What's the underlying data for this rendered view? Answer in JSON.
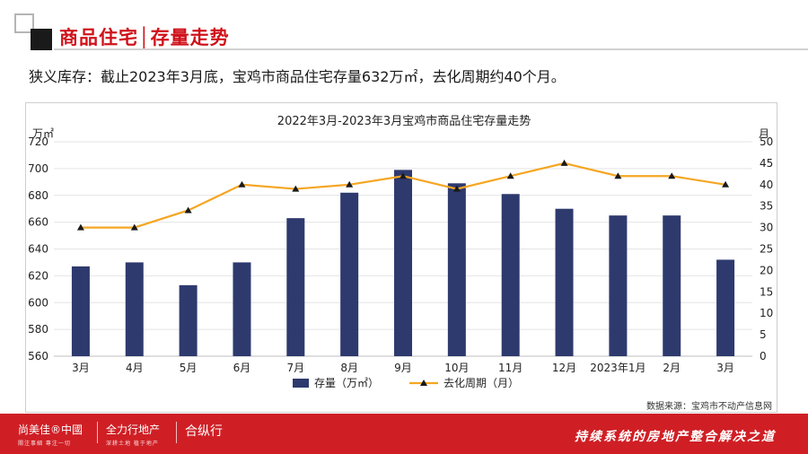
{
  "header": {
    "title": "商品住宅│存量走势"
  },
  "summary": "狭义库存：截止2023年3月底，宝鸡市商品住宅存量632万㎡，去化周期约40个月。",
  "source": "数据来源：宝鸡市不动产信息网",
  "footer": {
    "brands": [
      {
        "name": "尚美佳®中國",
        "sub": "關注事細  專注一切"
      },
      {
        "name": "全力行地产",
        "sub": "深耕土地  植于地产"
      },
      {
        "name": "合纵行",
        "sub": ""
      }
    ],
    "slogan": "持续系统的房地产整合解决之道"
  },
  "colors": {
    "brand_red": "#cf1f25",
    "bar": "#2e3a6e",
    "line": "#f5a623",
    "marker": "#1a1a1a"
  },
  "chart_data": {
    "type": "bar",
    "title": "2022年3月-2023年3月宝鸡市商品住宅存量走势",
    "categories": [
      "3月",
      "4月",
      "5月",
      "6月",
      "7月",
      "8月",
      "9月",
      "10月",
      "11月",
      "12月",
      "2023年1月",
      "2月",
      "3月"
    ],
    "series": [
      {
        "name": "存量（万㎡）",
        "type": "bar",
        "axis": "left",
        "values": [
          627,
          630,
          613,
          630,
          663,
          682,
          699,
          689,
          681,
          670,
          665,
          665,
          632
        ]
      },
      {
        "name": "去化周期（月）",
        "type": "line",
        "axis": "right",
        "values": [
          30,
          30,
          34,
          40,
          39,
          40,
          42,
          39,
          42,
          45,
          42,
          42,
          40
        ]
      }
    ],
    "ylabel_left": "万㎡",
    "ylabel_right": "月",
    "ylim_left": [
      560,
      720
    ],
    "yticks_left": [
      "560",
      "580",
      "600",
      "620",
      "640",
      "660",
      "680",
      "700",
      "720"
    ],
    "ylim_right": [
      0,
      50
    ],
    "yticks_right": [
      "0",
      "5",
      "10",
      "15",
      "20",
      "25",
      "30",
      "35",
      "40",
      "45",
      "50"
    ],
    "grid": true,
    "legend": "bottom"
  }
}
